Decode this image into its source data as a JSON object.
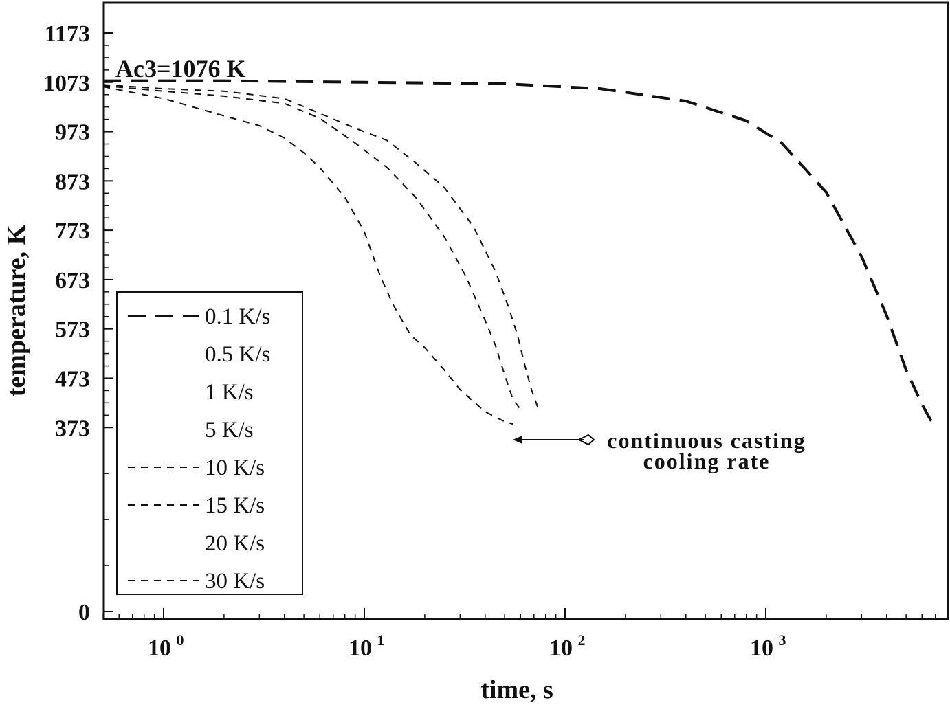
{
  "chart_data": {
    "type": "line",
    "xlabel": "time, s",
    "ylabel": "temperature, K",
    "x_scale": "log",
    "xlim": [
      0.5,
      7500
    ],
    "ylim": [
      0,
      1173
    ],
    "y_ticks": [
      0,
      373,
      473,
      573,
      673,
      773,
      873,
      973,
      1073,
      1173
    ],
    "x_ticks": [
      {
        "value": 1,
        "base": "10",
        "exp": "0"
      },
      {
        "value": 10,
        "base": "10",
        "exp": "1"
      },
      {
        "value": 100,
        "base": "10",
        "exp": "2"
      },
      {
        "value": 1000,
        "base": "10",
        "exp": "3"
      }
    ],
    "annotation_ac3": "Ac3=1076 K",
    "annotation_arrow": [
      "continuous casting",
      "cooling rate"
    ],
    "legend_position": "lower-left",
    "series": [
      {
        "name": "0.1 K/s",
        "style": "heavy-dash",
        "points": [
          [
            0.5,
            1076
          ],
          [
            2,
            1076
          ],
          [
            10,
            1073
          ],
          [
            50,
            1070
          ],
          [
            150,
            1060
          ],
          [
            400,
            1035
          ],
          [
            800,
            995
          ],
          [
            1200,
            950
          ],
          [
            2000,
            850
          ],
          [
            3000,
            720
          ],
          [
            4000,
            600
          ],
          [
            5000,
            490
          ],
          [
            6000,
            420
          ],
          [
            6800,
            380
          ]
        ]
      },
      {
        "name": "0.5 K/s",
        "style": "none",
        "points": []
      },
      {
        "name": "1 K/s",
        "style": "none",
        "points": []
      },
      {
        "name": "5 K/s",
        "style": "none",
        "points": []
      },
      {
        "name": "10 K/s",
        "style": "dash",
        "points": [
          [
            0.5,
            1068
          ],
          [
            1,
            1060
          ],
          [
            2,
            1055
          ],
          [
            4,
            1040
          ],
          [
            6,
            1010
          ],
          [
            9,
            980
          ],
          [
            13,
            955
          ],
          [
            18,
            910
          ],
          [
            25,
            860
          ],
          [
            35,
            780
          ],
          [
            45,
            690
          ],
          [
            52,
            620
          ],
          [
            58,
            560
          ],
          [
            63,
            500
          ],
          [
            68,
            450
          ],
          [
            73,
            415
          ]
        ]
      },
      {
        "name": "15 K/s",
        "style": "dash",
        "points": [
          [
            0.5,
            1066
          ],
          [
            1,
            1055
          ],
          [
            2,
            1045
          ],
          [
            4,
            1030
          ],
          [
            6,
            1000
          ],
          [
            9,
            950
          ],
          [
            13,
            900
          ],
          [
            18,
            840
          ],
          [
            25,
            760
          ],
          [
            32,
            680
          ],
          [
            40,
            590
          ],
          [
            45,
            540
          ],
          [
            50,
            480
          ],
          [
            55,
            430
          ],
          [
            60,
            410
          ]
        ]
      },
      {
        "name": "20 K/s",
        "style": "none",
        "points": []
      },
      {
        "name": "30 K/s",
        "style": "dash",
        "points": [
          [
            0.5,
            1064
          ],
          [
            1,
            1040
          ],
          [
            2,
            1005
          ],
          [
            3,
            985
          ],
          [
            4,
            960
          ],
          [
            5,
            930
          ],
          [
            6,
            900
          ],
          [
            8,
            840
          ],
          [
            10,
            770
          ],
          [
            12,
            680
          ],
          [
            14,
            620
          ],
          [
            17,
            560
          ],
          [
            20,
            535
          ],
          [
            25,
            490
          ],
          [
            30,
            450
          ],
          [
            40,
            405
          ],
          [
            50,
            385
          ],
          [
            55,
            380
          ]
        ]
      }
    ]
  }
}
